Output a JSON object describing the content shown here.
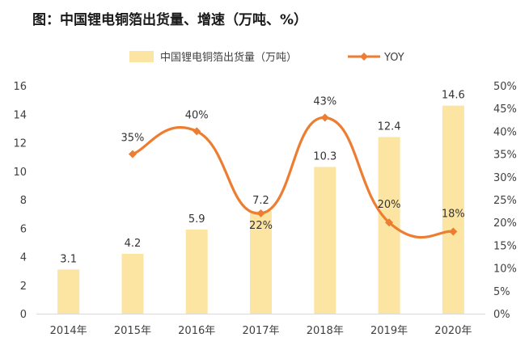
{
  "title": "图：中国锂电铜箔出货量、增速（万吨、%）",
  "colors": {
    "bar": "#FCE5A2",
    "line": "#ED7D31",
    "axis": "#D9D9D9",
    "text": "#404040"
  },
  "chart_data": {
    "type": "bar",
    "title": "图：中国锂电铜箔出货量、增速（万吨、%）",
    "categories": [
      "2014年",
      "2015年",
      "2016年",
      "2017年",
      "2018年",
      "2019年",
      "2020年"
    ],
    "series": [
      {
        "name": "中国锂电铜箔出货量（万吨）",
        "type": "bar",
        "axis": "left",
        "values": [
          3.1,
          4.2,
          5.9,
          7.2,
          10.3,
          12.4,
          14.6
        ],
        "labels": [
          "3.1",
          "4.2",
          "5.9",
          "7.2",
          "10.3",
          "12.4",
          "14.6"
        ]
      },
      {
        "name": "YOY",
        "type": "line",
        "axis": "right",
        "smooth": true,
        "values": [
          null,
          35,
          40,
          22,
          43,
          20,
          18
        ],
        "labels": [
          null,
          "35%",
          "40%",
          "22%",
          "43%",
          "20%",
          "18%"
        ]
      }
    ],
    "ylim_left": [
      0,
      16
    ],
    "yticks_left": [
      "0",
      "2",
      "4",
      "6",
      "8",
      "10",
      "12",
      "14",
      "16"
    ],
    "ylim_right": [
      0,
      50
    ],
    "yticks_right": [
      "0%",
      "5%",
      "10%",
      "15%",
      "20%",
      "25%",
      "30%",
      "35%",
      "40%",
      "45%",
      "50%"
    ],
    "legend": "top-center",
    "grid": false
  }
}
